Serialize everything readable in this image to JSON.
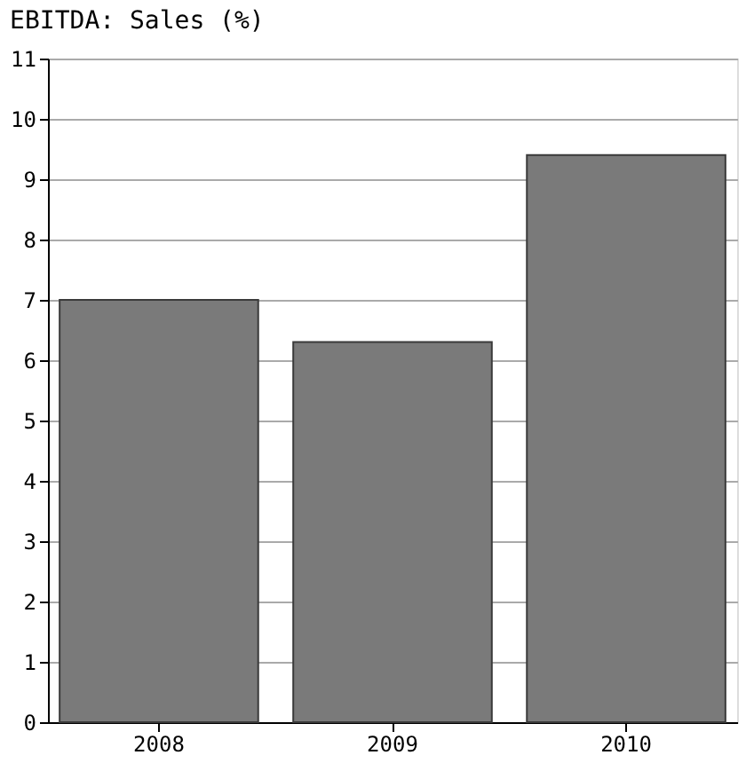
{
  "chart_data": {
    "type": "bar",
    "title": "EBITDA: Sales (%)",
    "categories": [
      "2008",
      "2009",
      "2010"
    ],
    "values": [
      7.0,
      6.3,
      9.4
    ],
    "color": "#7a7a7a",
    "ylim": [
      0,
      11
    ],
    "yticks": [
      0,
      1,
      2,
      3,
      4,
      5,
      6,
      7,
      8,
      9,
      10,
      11
    ],
    "grid": "y"
  }
}
